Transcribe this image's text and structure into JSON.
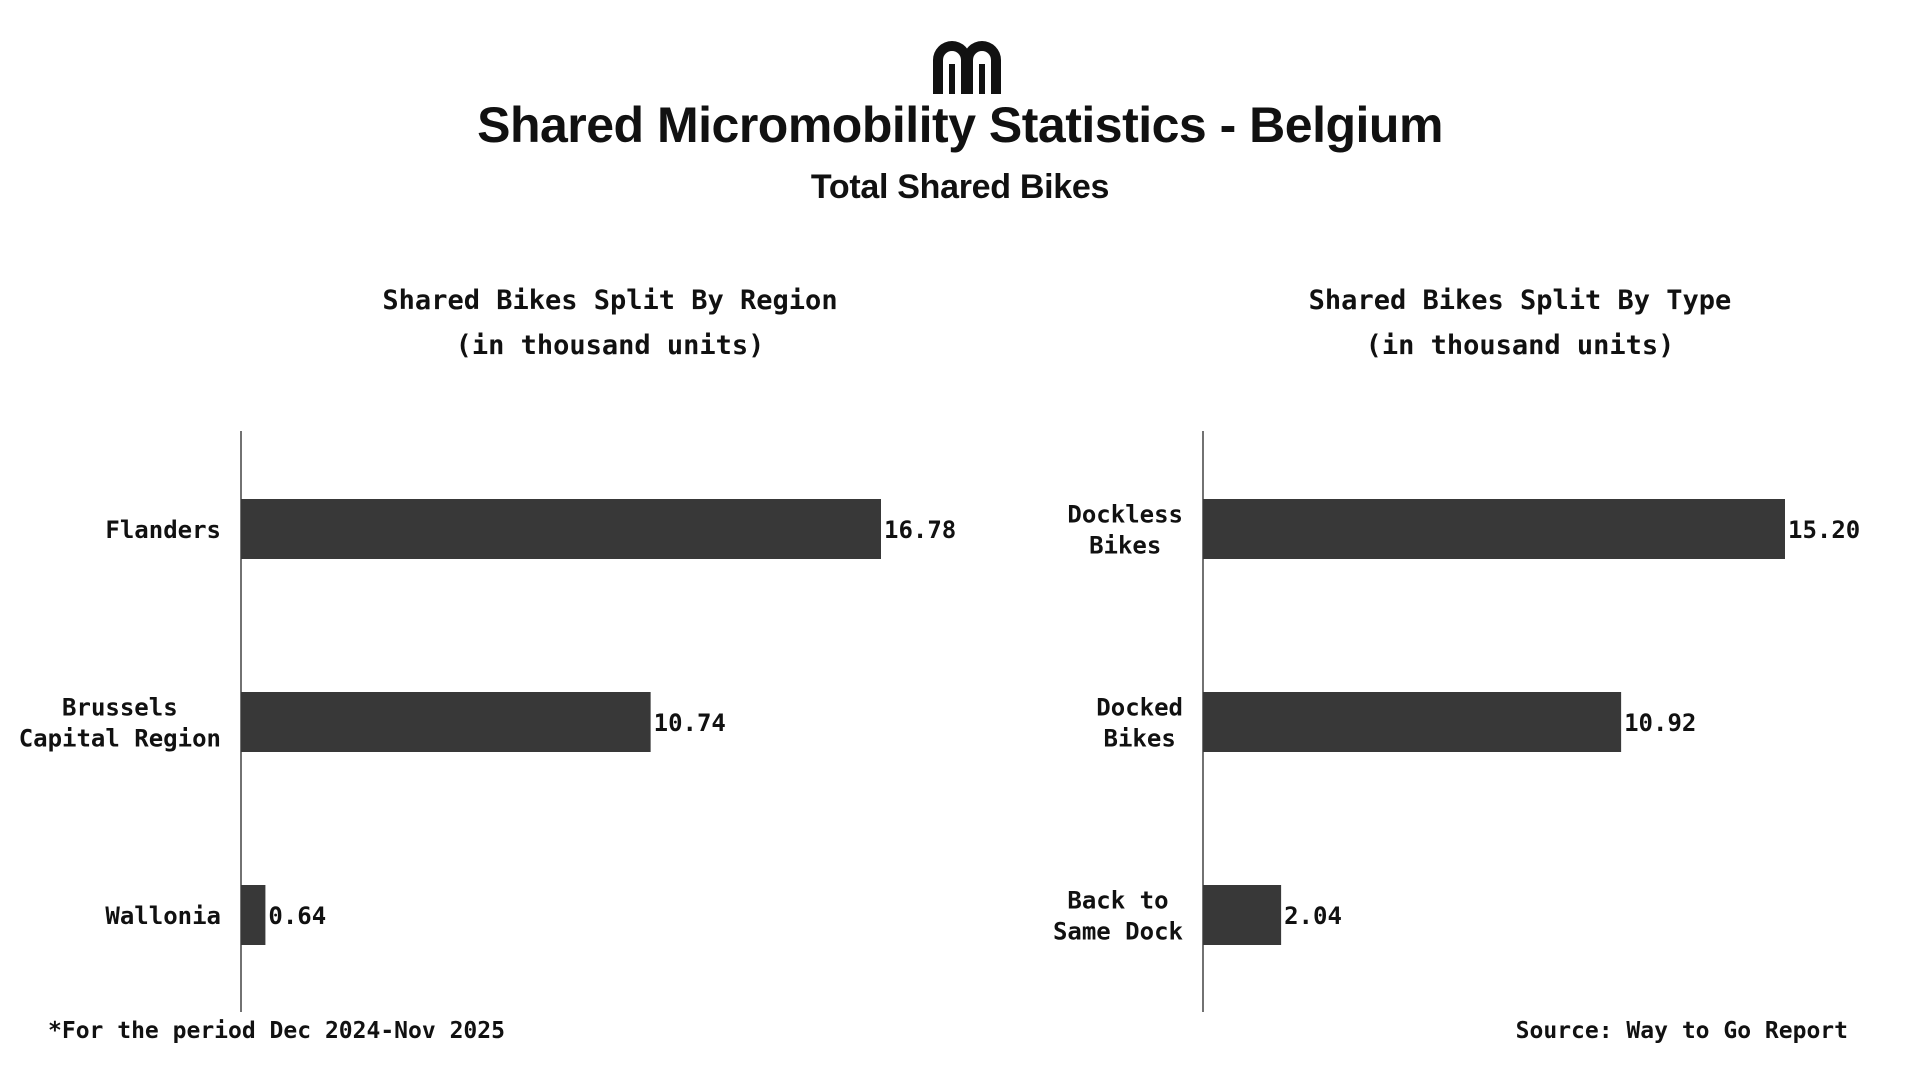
{
  "header": {
    "title": "Shared Micromobility Statistics - Belgium",
    "subtitle": "Total Shared Bikes",
    "logo_icon": "mm-arches-logo-icon"
  },
  "colors": {
    "bar": "#383838",
    "axis": "#444444",
    "text": "#111111"
  },
  "chart_data": [
    {
      "type": "bar",
      "orientation": "horizontal",
      "title": "Shared Bikes Split By Region",
      "subtitle": "(in thousand units)",
      "categories": [
        "Flanders",
        "Brussels Capital Region",
        "Wallonia"
      ],
      "category_lines": [
        [
          "Flanders"
        ],
        [
          "Brussels",
          "Capital Region"
        ],
        [
          "Wallonia"
        ]
      ],
      "values": [
        16.78,
        10.74,
        0.64
      ],
      "value_labels": [
        "16.78",
        "10.74",
        "0.64"
      ],
      "xlim": [
        0,
        18.5
      ],
      "grid": false,
      "legend": "none"
    },
    {
      "type": "bar",
      "orientation": "horizontal",
      "title": "Shared Bikes Split By Type",
      "subtitle": "(in thousand units)",
      "categories": [
        "Dockless Bikes",
        "Docked Bikes",
        "Back to Same Dock"
      ],
      "category_lines": [
        [
          "Dockless",
          "Bikes"
        ],
        [
          "Docked",
          "Bikes"
        ],
        [
          "Back to",
          "Same Dock"
        ]
      ],
      "values": [
        15.2,
        10.92,
        2.04
      ],
      "value_labels": [
        "15.20",
        "10.92",
        "2.04"
      ],
      "xlim": [
        0,
        16.5
      ],
      "grid": false,
      "legend": "none"
    }
  ],
  "footer": {
    "note": "*For the period Dec 2024-Nov 2025",
    "source": "Source: Way to Go Report"
  }
}
